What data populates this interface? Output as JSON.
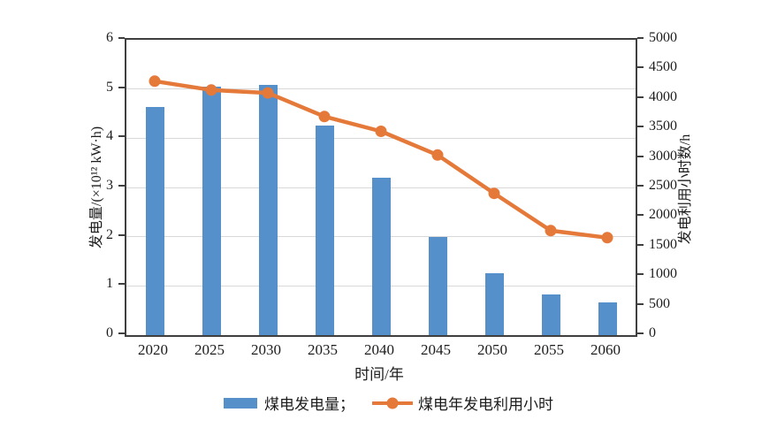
{
  "figure": {
    "background": "#ffffff"
  },
  "colors": {
    "bar": "#5590cb",
    "line": "#e5793a",
    "axis": "#3f3f3f",
    "grid": "#d9d9d9",
    "text": "#1c1c1c"
  },
  "axes": {
    "left": {
      "title": "发电量/(×10¹² kW·h)",
      "ticks": [
        0,
        1,
        2,
        3,
        4,
        5,
        6
      ]
    },
    "right": {
      "title": "发电利用小时数/h",
      "ticks": [
        0,
        500,
        1000,
        1500,
        2000,
        2500,
        3000,
        3500,
        4000,
        4500,
        5000
      ]
    },
    "x": {
      "title": "时间/年"
    }
  },
  "legend": {
    "bar_label": "煤电发电量；",
    "line_label": "煤电年发电利用小时"
  },
  "chart_data": {
    "type": "bar",
    "subtype": "bar+line dual-axis",
    "categories": [
      "2020",
      "2025",
      "2030",
      "2035",
      "2040",
      "2045",
      "2050",
      "2055",
      "2060"
    ],
    "series": [
      {
        "name": "煤电发电量",
        "type": "bar",
        "axis": "left",
        "unit": "×10¹² kW·h",
        "values": [
          4.63,
          5.05,
          5.08,
          4.25,
          3.2,
          2.0,
          1.25,
          0.83,
          0.66
        ]
      },
      {
        "name": "煤电年发电利用小时",
        "type": "line",
        "axis": "right",
        "unit": "h",
        "values": [
          4300,
          4150,
          4100,
          3700,
          3450,
          3050,
          2400,
          1770,
          1650
        ]
      }
    ],
    "title": "",
    "xlabel": "时间/年",
    "ylabel": "发电量/(×10¹² kW·h)",
    "ylabel_right": "发电利用小时数/h",
    "ylim_left": [
      0,
      6
    ],
    "ylim_right": [
      0,
      5000
    ],
    "grid": "horizontal gridlines at left-axis integers 1-5",
    "legend_position": "bottom-center"
  }
}
